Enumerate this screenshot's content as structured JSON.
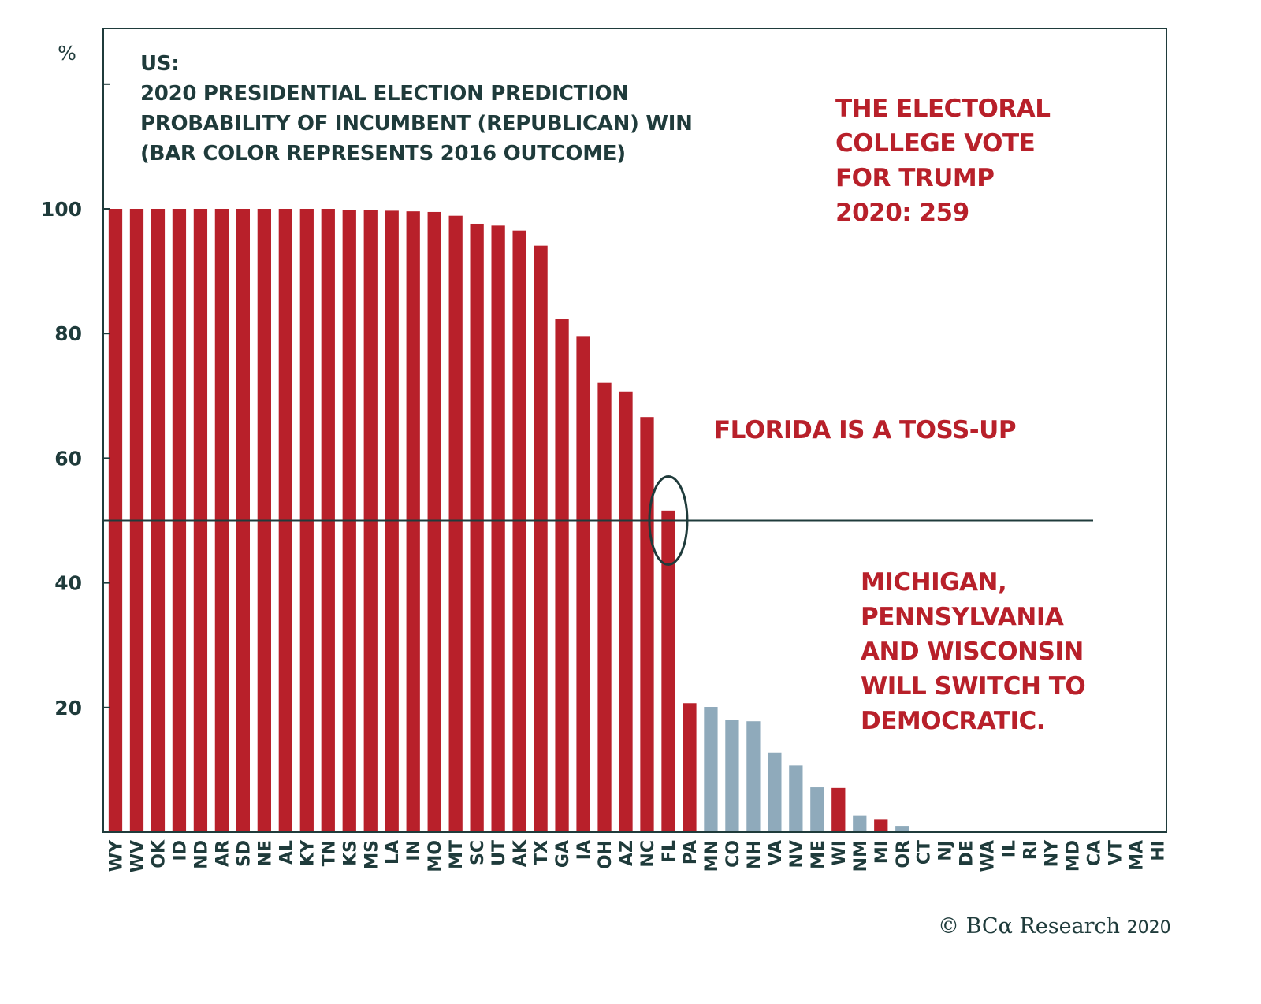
{
  "chart_data": {
    "type": "bar",
    "title": "US:",
    "subtitle_lines": [
      "2020 PRESIDENTIAL ELECTION PREDICTION",
      "PROBABILITY OF INCUMBENT (REPUBLICAN) WIN",
      "(BAR COLOR REPRESENTS 2016 OUTCOME)"
    ],
    "xlabel": "",
    "ylabel": "%",
    "ylim": [
      0,
      128
    ],
    "yticks": [
      20,
      40,
      60,
      80,
      100
    ],
    "ytick_labels": [
      "20",
      "40",
      "60",
      "80",
      "100"
    ],
    "extra_ytick_unlabeled": [
      120
    ],
    "grid": false,
    "legend": null,
    "reference_line": {
      "value": 50,
      "label": ""
    },
    "highlight": {
      "category": "FL",
      "shape": "ellipse"
    },
    "categories": [
      "WY",
      "WV",
      "OK",
      "ID",
      "ND",
      "AR",
      "SD",
      "NE",
      "AL",
      "KY",
      "TN",
      "KS",
      "MS",
      "LA",
      "IN",
      "MO",
      "MT",
      "SC",
      "UT",
      "AK",
      "TX",
      "GA",
      "IA",
      "OH",
      "AZ",
      "NC",
      "FL",
      "PA",
      "MN",
      "CO",
      "NH",
      "VA",
      "NV",
      "ME",
      "WI",
      "NM",
      "MI",
      "OR",
      "CT",
      "NJ",
      "DE",
      "WA",
      "IL",
      "RI",
      "NY",
      "MD",
      "CA",
      "VT",
      "MA",
      "HI"
    ],
    "values": [
      100,
      100,
      100,
      100,
      100,
      100,
      100,
      100,
      100,
      100,
      100,
      99.8,
      99.8,
      99.7,
      99.6,
      99.5,
      98.9,
      97.6,
      97.3,
      96.5,
      94.1,
      82.3,
      79.6,
      72.1,
      70.7,
      66.6,
      51.6,
      20.7,
      20.1,
      18.0,
      17.8,
      12.8,
      10.7,
      7.2,
      7.1,
      2.7,
      2.1,
      1.0,
      0.2,
      0,
      0,
      0,
      0,
      0,
      0,
      0,
      0,
      0,
      0,
      0
    ],
    "outcome_2016": [
      "R",
      "R",
      "R",
      "R",
      "R",
      "R",
      "R",
      "R",
      "R",
      "R",
      "R",
      "R",
      "R",
      "R",
      "R",
      "R",
      "R",
      "R",
      "R",
      "R",
      "R",
      "R",
      "R",
      "R",
      "R",
      "R",
      "R",
      "R",
      "D",
      "D",
      "D",
      "D",
      "D",
      "D",
      "R",
      "D",
      "R",
      "D",
      "D",
      "D",
      "D",
      "D",
      "D",
      "D",
      "D",
      "D",
      "D",
      "D",
      "D",
      "D"
    ],
    "series_colors": {
      "R": "#b8202a",
      "D": "#8faabb"
    },
    "annotations": [
      {
        "id": "electoral",
        "lines": [
          "THE ELECTORAL",
          "COLLEGE VOTE",
          "FOR TRUMP",
          "2020: 259"
        ]
      },
      {
        "id": "florida",
        "lines": [
          "FLORIDA IS A TOSS-UP"
        ]
      },
      {
        "id": "michigan",
        "lines": [
          "MICHIGAN,",
          "PENNSYLVANIA",
          "AND WISCONSIN",
          "WILL SWITCH TO",
          "DEMOCRATIC."
        ]
      }
    ]
  },
  "footer": {
    "copyright": "© BCα Research",
    "year": "2020"
  },
  "colors": {
    "axis": "#1f3b3b",
    "republican": "#b8202a",
    "democrat": "#8faabb",
    "annotation": "#b8202a"
  }
}
